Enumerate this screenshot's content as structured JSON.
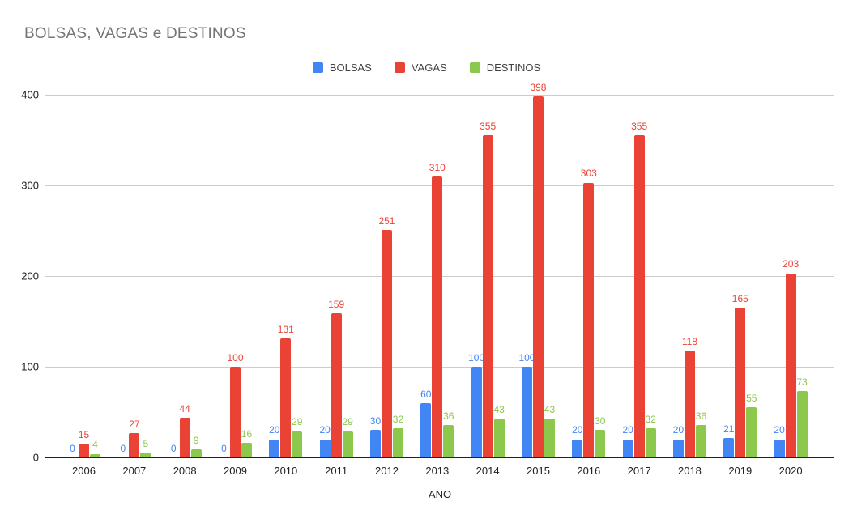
{
  "title": "BOLSAS, VAGAS e DESTINOS",
  "colors": {
    "bolsas": "#4285F4",
    "vagas": "#EA4335",
    "destinos": "#8CC84B",
    "title_text": "#757575",
    "gridline": "#cccccc",
    "axis_line": "#222222"
  },
  "legend": {
    "items": [
      {
        "label": "BOLSAS",
        "color": "#4285F4"
      },
      {
        "label": "VAGAS",
        "color": "#EA4335"
      },
      {
        "label": "DESTINOS",
        "color": "#8CC84B"
      }
    ]
  },
  "chart_data": {
    "type": "bar",
    "title": "BOLSAS, VAGAS e DESTINOS",
    "xlabel": "ANO",
    "ylabel": "",
    "ylim": [
      0,
      400
    ],
    "y_ticks": [
      0,
      100,
      200,
      300,
      400
    ],
    "grid": true,
    "legend_position": "top",
    "categories": [
      "2006",
      "2007",
      "2008",
      "2009",
      "2010",
      "2011",
      "2012",
      "2013",
      "2014",
      "2015",
      "2016",
      "2017",
      "2018",
      "2019",
      "2020"
    ],
    "series": [
      {
        "name": "BOLSAS",
        "color": "#4285F4",
        "values": [
          0,
          0,
          0,
          0,
          20,
          20,
          30,
          60,
          100,
          100,
          20,
          20,
          20,
          21,
          20
        ]
      },
      {
        "name": "VAGAS",
        "color": "#EA4335",
        "values": [
          15,
          27,
          44,
          100,
          131,
          159,
          251,
          310,
          355,
          398,
          303,
          355,
          118,
          165,
          203
        ]
      },
      {
        "name": "DESTINOS",
        "color": "#8CC84B",
        "values": [
          4,
          5,
          9,
          16,
          29,
          29,
          32,
          36,
          43,
          43,
          30,
          32,
          36,
          55,
          73
        ]
      }
    ]
  }
}
